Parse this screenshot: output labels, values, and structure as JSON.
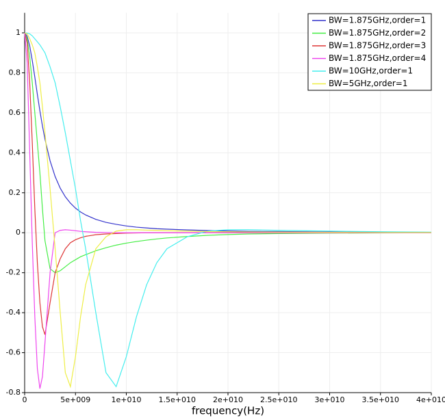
{
  "chart_data": {
    "type": "line",
    "x_label": "frequency(Hz)",
    "x": [
      0,
      250000000.0,
      500000000.0,
      750000000.0,
      1000000000.0,
      1250000000.0,
      1500000000.0,
      1750000000.0,
      2000000000.0,
      2500000000.0,
      3000000000.0,
      3500000000.0,
      4000000000.0,
      4500000000.0,
      5000000000.0,
      5500000000.0,
      6000000000.0,
      7000000000.0,
      8000000000.0,
      9000000000.0,
      10000000000.0,
      11000000000.0,
      12000000000.0,
      13000000000.0,
      14000000000.0,
      16000000000.0,
      18000000000.0,
      20000000000.0,
      22000000000.0,
      25000000000.0,
      30000000000.0,
      35000000000.0,
      40000000000.0
    ],
    "series": [
      {
        "name": "BW=1.875GHz,order=1",
        "color": "#3333cc",
        "values": [
          1,
          0.983,
          0.934,
          0.862,
          0.779,
          0.692,
          0.61,
          0.534,
          0.468,
          0.36,
          0.281,
          0.223,
          0.18,
          0.148,
          0.123,
          0.104,
          0.089,
          0.067,
          0.052,
          0.042,
          0.034,
          0.028,
          0.024,
          0.02,
          0.018,
          0.014,
          0.011,
          0.009,
          0.007,
          0.006,
          0.004,
          0.003,
          0.002
        ]
      },
      {
        "name": "BW=1.875GHz,order=2",
        "color": "#44ee44",
        "values": [
          1,
          0.97,
          0.88,
          0.75,
          0.6,
          0.45,
          0.3,
          0.12,
          -0.04,
          -0.18,
          -0.2,
          -0.19,
          -0.17,
          -0.15,
          -0.135,
          -0.12,
          -0.11,
          -0.09,
          -0.075,
          -0.062,
          -0.052,
          -0.044,
          -0.037,
          -0.031,
          -0.026,
          -0.019,
          -0.013,
          -0.009,
          -0.006,
          -0.004,
          -0.002,
          -0.001,
          0
        ]
      },
      {
        "name": "BW=1.875GHz,order=3",
        "color": "#dd3333",
        "values": [
          1,
          0.95,
          0.75,
          0.45,
          0.12,
          -0.15,
          -0.35,
          -0.47,
          -0.51,
          -0.35,
          -0.2,
          -0.13,
          -0.08,
          -0.05,
          -0.035,
          -0.025,
          -0.018,
          -0.01,
          -0.006,
          -0.004,
          -0.002,
          -0.001,
          0,
          0,
          0,
          0,
          0,
          0,
          0,
          0,
          0,
          0,
          0
        ]
      },
      {
        "name": "BW=1.875GHz,order=4",
        "color": "#ee44ee",
        "values": [
          1,
          0.85,
          0.4,
          -0.05,
          -0.42,
          -0.68,
          -0.78,
          -0.72,
          -0.55,
          -0.2,
          0,
          0.012,
          0.015,
          0.013,
          0.01,
          0.007,
          0.005,
          0.002,
          0.001,
          0,
          0,
          0,
          0,
          0,
          0,
          0,
          0,
          0,
          0,
          0,
          0,
          0,
          0
        ]
      },
      {
        "name": "BW=10GHz,order=1",
        "color": "#44eeee",
        "values": [
          1,
          0.999,
          0.995,
          0.985,
          0.97,
          0.955,
          0.94,
          0.92,
          0.9,
          0.83,
          0.75,
          0.63,
          0.5,
          0.36,
          0.22,
          0.06,
          -0.08,
          -0.4,
          -0.7,
          -0.77,
          -0.62,
          -0.42,
          -0.26,
          -0.15,
          -0.08,
          -0.02,
          0.008,
          0.015,
          0.015,
          0.012,
          0.008,
          0.005,
          0.003
        ]
      },
      {
        "name": "BW=5GHz,order=1",
        "color": "#eeee44",
        "values": [
          1,
          0.995,
          0.97,
          0.94,
          0.9,
          0.83,
          0.75,
          0.63,
          0.5,
          0.22,
          -0.08,
          -0.4,
          -0.7,
          -0.77,
          -0.62,
          -0.42,
          -0.26,
          -0.08,
          -0.02,
          0.008,
          0.015,
          0.015,
          0.013,
          0.012,
          0.01,
          0.008,
          0.006,
          0.005,
          0.004,
          0.003,
          0.002,
          0.001,
          0.001
        ]
      }
    ],
    "xlim": [
      0,
      40000000000.0
    ],
    "xticks": [
      0,
      {
        "value": 5000000000.0,
        "label": "5e+009"
      },
      {
        "value": 10000000000.0,
        "label": "1e+010"
      },
      {
        "value": 15000000000.0,
        "label": "1.5e+010"
      },
      {
        "value": 20000000000.0,
        "label": "2e+010"
      },
      {
        "value": 25000000000.0,
        "label": "2.5e+010"
      },
      {
        "value": 30000000000.0,
        "label": "3e+010"
      },
      {
        "value": 35000000000.0,
        "label": "3.5e+010"
      },
      {
        "value": 40000000000.0,
        "label": "4e+010"
      }
    ],
    "ylim": [
      -0.8,
      1.1
    ],
    "yticks": [
      -0.8,
      -0.6,
      -0.4,
      -0.2,
      0,
      0.2,
      0.4,
      0.6,
      0.8,
      1
    ],
    "grid": true,
    "legend": "upper right"
  }
}
